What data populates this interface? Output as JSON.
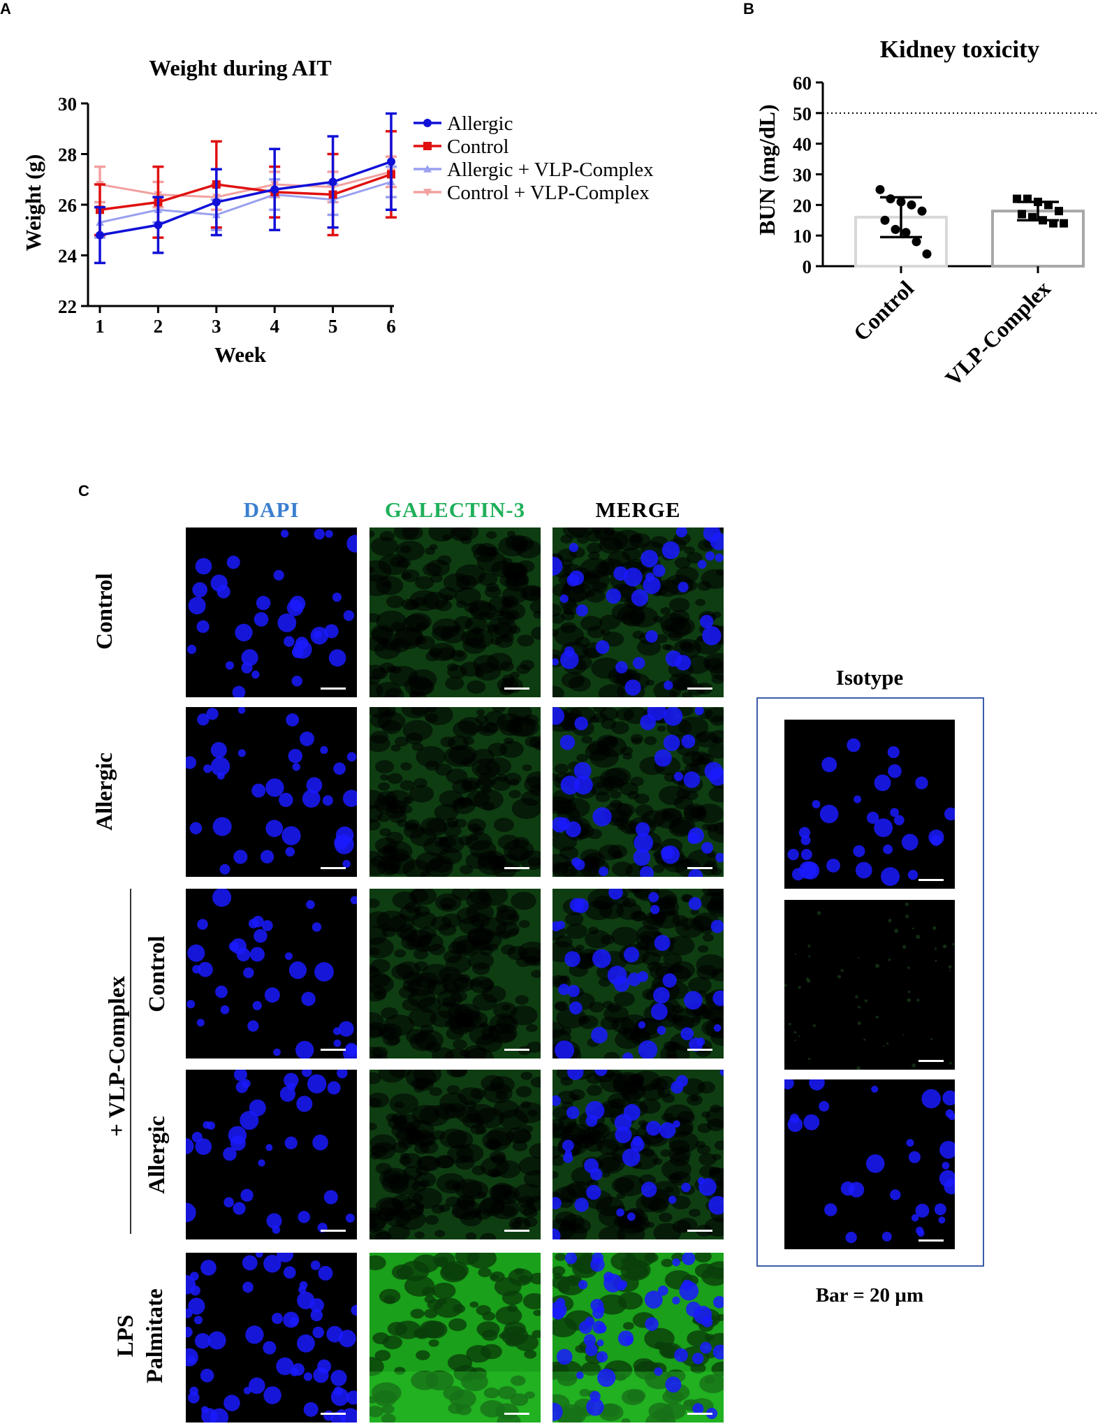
{
  "panel_letters": {
    "a": "A",
    "b": "B",
    "c": "C"
  },
  "chart_data": [
    {
      "type": "line",
      "title": "Weight during AIT",
      "xlabel": "Week",
      "ylabel": "Weight (g)",
      "x": [
        1,
        2,
        3,
        4,
        5,
        6
      ],
      "ylim": [
        22,
        30
      ],
      "yticks": [
        22,
        24,
        26,
        28,
        30
      ],
      "legend_position": "right",
      "series": [
        {
          "name": "Allergic",
          "color": "#1010d8",
          "marker": "circle",
          "values": [
            24.8,
            25.2,
            26.1,
            26.6,
            26.9,
            27.7
          ],
          "err": [
            1.1,
            1.1,
            1.3,
            1.6,
            1.8,
            1.9
          ]
        },
        {
          "name": "Control",
          "color": "#e01010",
          "marker": "square",
          "values": [
            25.8,
            26.1,
            26.8,
            26.5,
            26.4,
            27.2
          ],
          "err": [
            1.0,
            1.4,
            1.7,
            1.0,
            1.6,
            1.7
          ]
        },
        {
          "name": "Allergic + VLP-Complex",
          "color": "#9aa0f0",
          "marker": "triangle-up",
          "values": [
            25.3,
            25.8,
            25.6,
            26.4,
            26.2,
            26.9
          ],
          "err": [
            0.6,
            0.5,
            0.6,
            0.6,
            0.6,
            0.6
          ]
        },
        {
          "name": "Control + VLP-Complex",
          "color": "#f2a0a0",
          "marker": "triangle-down",
          "values": [
            26.8,
            26.4,
            26.3,
            26.8,
            26.7,
            27.3
          ],
          "err": [
            0.7,
            0.5,
            0.5,
            0.5,
            0.6,
            0.6
          ]
        }
      ]
    },
    {
      "type": "bar",
      "title": "Kidney toxicity",
      "ylabel": "BUN (mg/dL)",
      "categories": [
        "Control",
        "VLP-Complex"
      ],
      "values": [
        16,
        18
      ],
      "err": [
        6.5,
        3
      ],
      "ylim": [
        0,
        60
      ],
      "yticks": [
        0,
        10,
        20,
        30,
        40,
        50,
        60
      ],
      "reference_line": 50,
      "bar_colors": [
        "#d8d8d8",
        "#a8a8a8"
      ],
      "points": [
        [
          25,
          22,
          21,
          20,
          18,
          15,
          12,
          11,
          8,
          4
        ],
        [
          22,
          22,
          21,
          20,
          18,
          17,
          16,
          15,
          14,
          14
        ]
      ]
    }
  ],
  "panel_c": {
    "columns": [
      {
        "label": "DAPI",
        "color": "#3a7fd0"
      },
      {
        "label": "GALECTIN-3",
        "color": "#1fb05a"
      },
      {
        "label": "MERGE",
        "color": "#000000"
      }
    ],
    "rows": [
      "Control",
      "Allergic",
      "Control",
      "Allergic"
    ],
    "group_label": "+ VLP-Complex",
    "lps_lines": [
      "LPS",
      "Palmitate"
    ],
    "isotype_title": "Isotype",
    "bar_note": "Bar = 20 µm"
  }
}
